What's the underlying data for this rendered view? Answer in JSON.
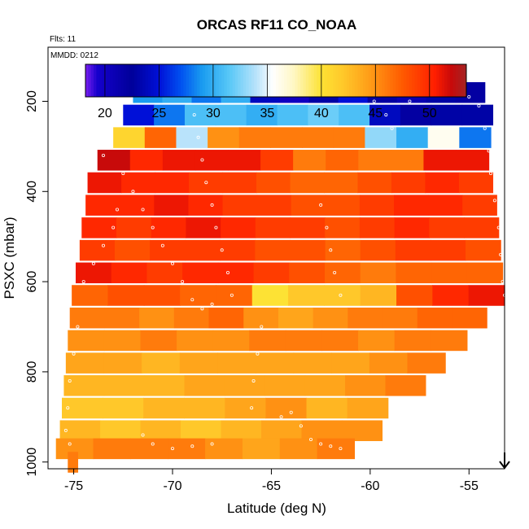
{
  "chart_data": {
    "type": "heatmap",
    "title": "ORCAS RF11 CO_NOAA",
    "subtitle": "Flts: 11",
    "annotation": "MMDD: 0212",
    "xlabel": "Latitude (deg N)",
    "ylabel": "PSXC (mbar)",
    "xlim": [
      -76.3,
      -53.2
    ],
    "ylim": [
      1015,
      80
    ],
    "x_ticks": [
      -75,
      -70,
      -65,
      -60,
      -55
    ],
    "x_tick_labels": [
      "-75",
      "-70",
      "-65",
      "-60",
      "-55"
    ],
    "y_ticks": [
      200,
      400,
      600,
      800,
      1000
    ],
    "y_tick_labels": [
      "200",
      "400",
      "600",
      "800",
      "1000"
    ],
    "colorbar": {
      "min": 18.2,
      "max": 53.4,
      "ticks": [
        20,
        25,
        30,
        35,
        40,
        45,
        50
      ],
      "tick_labels": [
        "20",
        "25",
        "30",
        "35",
        "40",
        "45",
        "50"
      ]
    },
    "color_stops": [
      [
        18.2,
        "#7a1ef0"
      ],
      [
        19.3,
        "#1500cc"
      ],
      [
        22.5,
        "#00009a"
      ],
      [
        25.0,
        "#0010d8"
      ],
      [
        27.0,
        "#0050f0"
      ],
      [
        29.0,
        "#1a9cf0"
      ],
      [
        31.5,
        "#58c8f7"
      ],
      [
        34.0,
        "#b9e3fb"
      ],
      [
        35.5,
        "#ffffff"
      ],
      [
        37.5,
        "#fff7c2"
      ],
      [
        40.0,
        "#fde234"
      ],
      [
        42.0,
        "#ffc82a"
      ],
      [
        44.5,
        "#ff9c17"
      ],
      [
        47.5,
        "#ff5a00"
      ],
      [
        50.5,
        "#ff1e00"
      ],
      [
        52.0,
        "#c80a0a"
      ],
      [
        53.4,
        "#a42424"
      ]
    ],
    "bands": [
      {
        "p_center": 180,
        "lat_start": -72.0,
        "lat_end": -54.2,
        "values": [
          29,
          30,
          28,
          30,
          24,
          20,
          23,
          25,
          22,
          21,
          23,
          22
        ]
      },
      {
        "p_center": 230,
        "lat_start": -72.5,
        "lat_end": -53.8,
        "values": [
          25,
          28,
          31,
          31,
          30,
          31,
          32,
          31,
          24,
          22,
          23,
          23
        ]
      },
      {
        "p_center": 280,
        "lat_start": -73.0,
        "lat_end": -53.9,
        "values": [
          41,
          47,
          34,
          45,
          46,
          46,
          46,
          46,
          33,
          30,
          36,
          28
        ]
      },
      {
        "p_center": 330,
        "lat_start": -73.8,
        "lat_end": -54.0,
        "values": [
          52,
          50,
          51,
          51,
          51,
          49,
          46,
          47,
          46,
          46,
          51,
          51
        ]
      },
      {
        "p_center": 380,
        "lat_start": -74.3,
        "lat_end": -53.8,
        "values": [
          51,
          50,
          50,
          49,
          49,
          48,
          47,
          47,
          48,
          49,
          50,
          49
        ]
      },
      {
        "p_center": 430,
        "lat_start": -74.4,
        "lat_end": -53.6,
        "values": [
          50,
          50,
          51,
          50,
          49,
          49,
          48,
          48,
          49,
          50,
          50,
          49
        ]
      },
      {
        "p_center": 480,
        "lat_start": -74.6,
        "lat_end": -53.5,
        "values": [
          50,
          49,
          50,
          51,
          50,
          49,
          49,
          48,
          49,
          50,
          49,
          49
        ]
      },
      {
        "p_center": 530,
        "lat_start": -74.7,
        "lat_end": -53.4,
        "values": [
          49,
          48,
          49,
          49,
          49,
          48,
          48,
          47,
          48,
          49,
          49,
          48
        ]
      },
      {
        "p_center": 580,
        "lat_start": -74.9,
        "lat_end": -53.3,
        "values": [
          51,
          50,
          49,
          50,
          50,
          49,
          48,
          47,
          46,
          47,
          47,
          47
        ]
      },
      {
        "p_center": 630,
        "lat_start": -75.1,
        "lat_end": -53.2,
        "values": [
          47,
          48,
          48,
          47,
          47,
          40,
          42,
          42,
          43,
          48,
          50,
          51
        ]
      },
      {
        "p_center": 680,
        "lat_start": -75.2,
        "lat_end": -54.1,
        "values": [
          46,
          46,
          45,
          46,
          47,
          45,
          44,
          45,
          46,
          46,
          47,
          47
        ]
      },
      {
        "p_center": 730,
        "lat_start": -75.3,
        "lat_end": -55.1,
        "values": [
          45,
          45,
          46,
          45,
          45,
          46,
          46,
          46,
          45,
          46,
          46
        ]
      },
      {
        "p_center": 780,
        "lat_start": -75.4,
        "lat_end": -56.2,
        "values": [
          44,
          44,
          43,
          44,
          44,
          44,
          44,
          44,
          45,
          46
        ]
      },
      {
        "p_center": 830,
        "lat_start": -75.5,
        "lat_end": -57.2,
        "values": [
          43,
          43,
          43,
          44,
          44,
          44,
          44,
          45,
          46
        ]
      },
      {
        "p_center": 880,
        "lat_start": -75.6,
        "lat_end": -59.1,
        "values": [
          42,
          42,
          43,
          43,
          44,
          45,
          43,
          44
        ]
      },
      {
        "p_center": 930,
        "lat_start": -75.7,
        "lat_end": -59.4,
        "values": [
          43,
          42,
          43,
          42,
          43,
          44,
          45,
          45
        ]
      },
      {
        "p_center": 970,
        "lat_start": -75.9,
        "lat_end": -60.8,
        "values": [
          45,
          46,
          46,
          46,
          45,
          44,
          45,
          46
        ]
      },
      {
        "p_center": 1000,
        "lat_start": -75.3,
        "lat_end": -74.8,
        "values": [
          46
        ]
      }
    ],
    "flight_track": [
      [
        -71.8,
        180
      ],
      [
        -70.5,
        180
      ],
      [
        -69.5,
        180
      ],
      [
        -68.2,
        180
      ],
      [
        -67.0,
        180
      ],
      [
        -65.5,
        180
      ],
      [
        -64.0,
        180
      ],
      [
        -62.5,
        180
      ],
      [
        -61.0,
        180
      ],
      [
        -60.5,
        185
      ],
      [
        -59.8,
        200
      ],
      [
        -59.2,
        230
      ],
      [
        -58.9,
        260
      ],
      [
        -58.0,
        200
      ],
      [
        -57.0,
        180
      ],
      [
        -56.0,
        185
      ],
      [
        -55.0,
        190
      ],
      [
        -54.5,
        210
      ],
      [
        -54.2,
        260
      ],
      [
        -54.0,
        310
      ],
      [
        -53.9,
        360
      ],
      [
        -53.7,
        420
      ],
      [
        -53.5,
        480
      ],
      [
        -53.4,
        540
      ],
      [
        -53.3,
        600
      ],
      [
        -53.2,
        630
      ],
      [
        -73.5,
        320
      ],
      [
        -72.5,
        360
      ],
      [
        -72.0,
        400
      ],
      [
        -71.5,
        440
      ],
      [
        -71.0,
        480
      ],
      [
        -70.5,
        520
      ],
      [
        -70.0,
        560
      ],
      [
        -69.5,
        600
      ],
      [
        -69.0,
        640
      ],
      [
        -68.5,
        660
      ],
      [
        -68.0,
        650
      ],
      [
        -74.5,
        600
      ],
      [
        -74.0,
        560
      ],
      [
        -73.5,
        520
      ],
      [
        -73.0,
        480
      ],
      [
        -72.8,
        440
      ],
      [
        -74.8,
        700
      ],
      [
        -75.0,
        760
      ],
      [
        -75.2,
        820
      ],
      [
        -75.3,
        880
      ],
      [
        -75.4,
        930
      ],
      [
        -75.2,
        960
      ],
      [
        -68.9,
        230
      ],
      [
        -68.7,
        280
      ],
      [
        -68.5,
        330
      ],
      [
        -68.3,
        380
      ],
      [
        -68.0,
        430
      ],
      [
        -67.8,
        480
      ],
      [
        -67.5,
        530
      ],
      [
        -67.2,
        580
      ],
      [
        -67.0,
        630
      ],
      [
        -61.5,
        630
      ],
      [
        -61.8,
        580
      ],
      [
        -62.0,
        530
      ],
      [
        -62.2,
        480
      ],
      [
        -62.5,
        430
      ],
      [
        -64.5,
        900
      ],
      [
        -64.0,
        890
      ],
      [
        -63.5,
        920
      ],
      [
        -63.0,
        950
      ],
      [
        -62.5,
        960
      ],
      [
        -62.0,
        965
      ],
      [
        -61.5,
        970
      ],
      [
        -71.5,
        940
      ],
      [
        -71.0,
        960
      ],
      [
        -70.0,
        970
      ],
      [
        -69.0,
        965
      ],
      [
        -68.0,
        960
      ],
      [
        -65.5,
        700
      ],
      [
        -65.7,
        760
      ],
      [
        -65.9,
        820
      ],
      [
        -66.0,
        880
      ]
    ],
    "marker_lat": -53.2
  }
}
